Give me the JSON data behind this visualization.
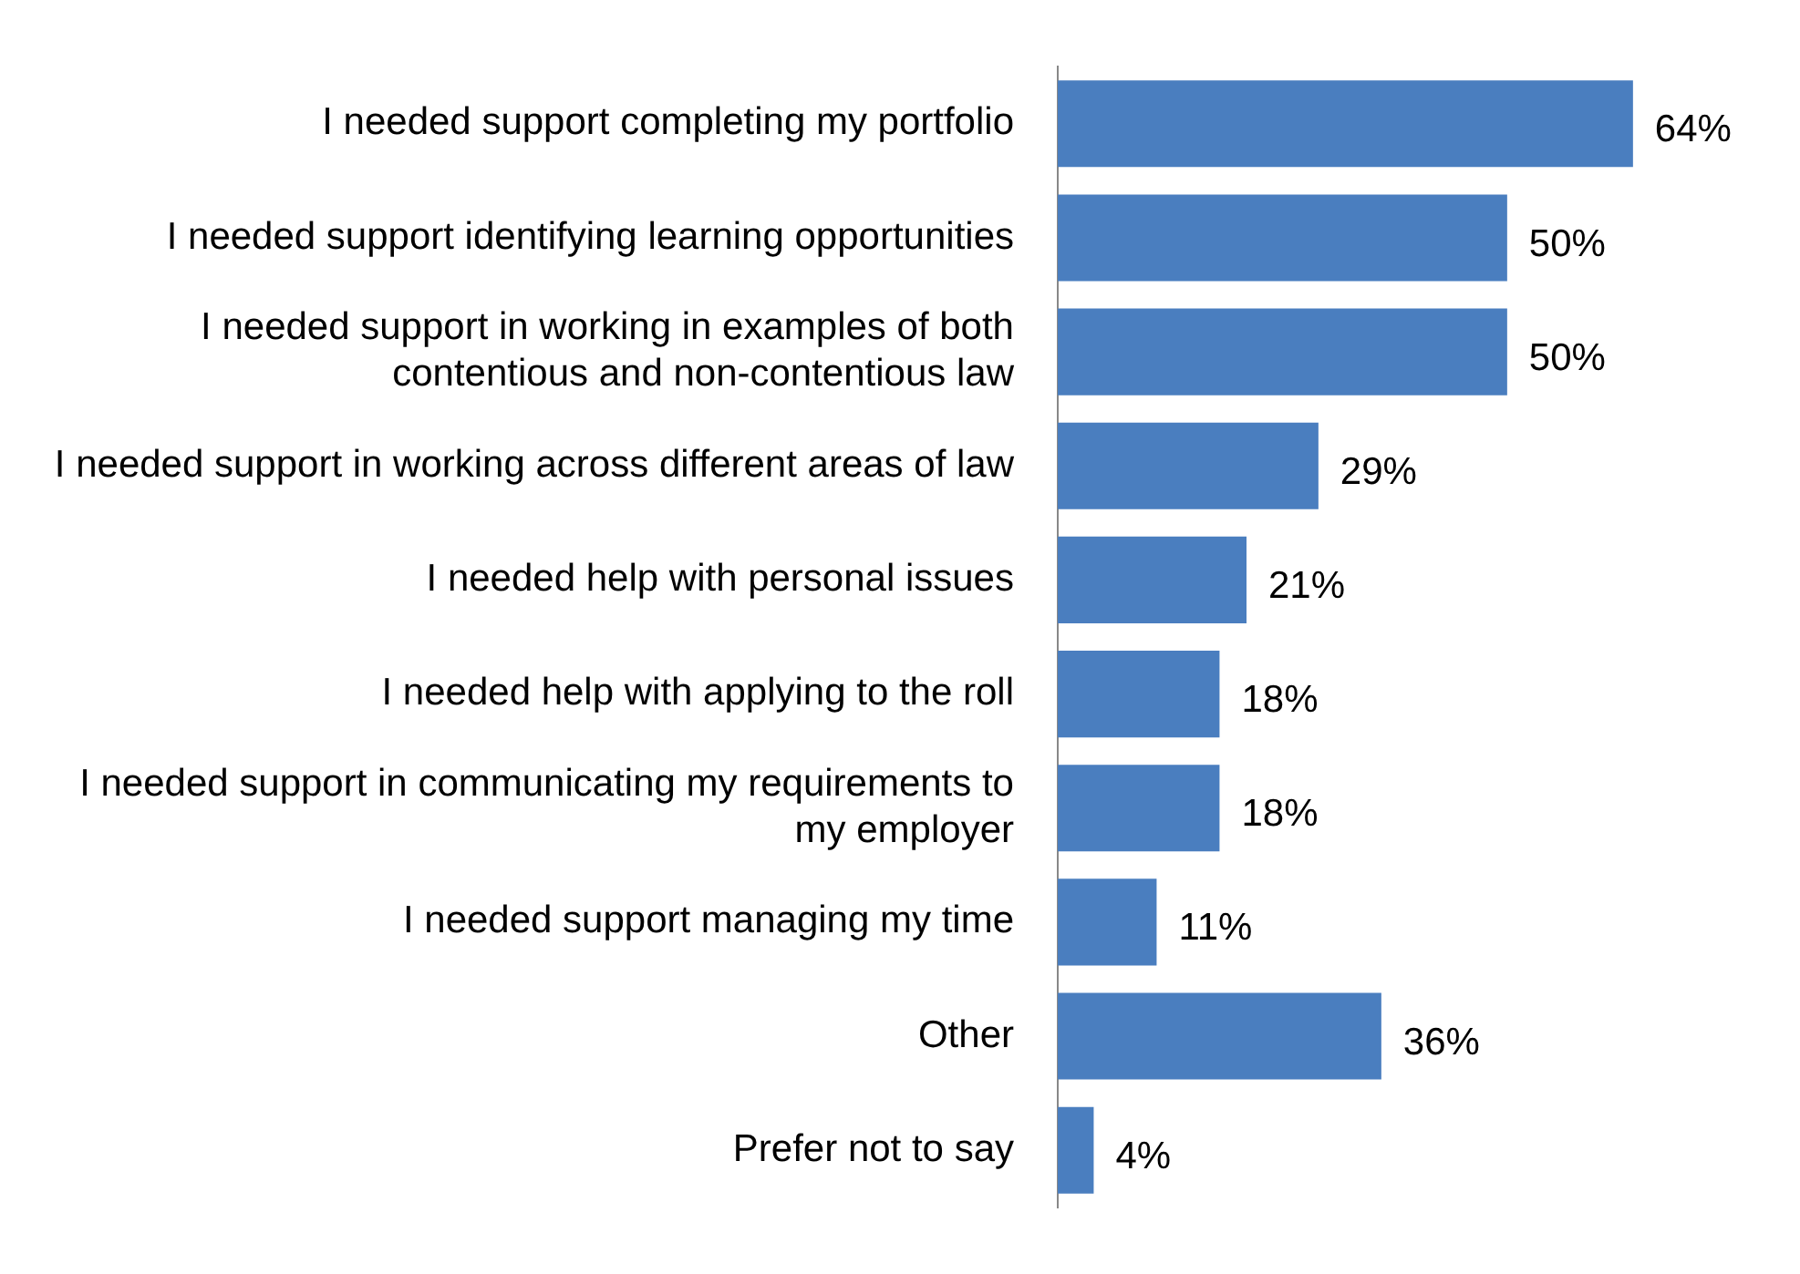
{
  "chart_data": {
    "type": "bar",
    "orientation": "horizontal",
    "categories": [
      "I needed support completing my portfolio",
      "I needed support identifying learning opportunities",
      "I needed support in working in examples of both contentious and non-contentious law",
      "I needed support in working across different areas of law",
      "I needed help with personal issues",
      "I needed help with applying to the roll",
      "I needed support in communicating my requirements to my employer",
      "I needed support managing my time",
      "Other",
      "Prefer not to say"
    ],
    "values": [
      64,
      50,
      50,
      29,
      21,
      18,
      18,
      11,
      36,
      4
    ],
    "value_labels": [
      "64%",
      "50%",
      "50%",
      "29%",
      "21%",
      "18%",
      "18%",
      "11%",
      "36%",
      "4%"
    ],
    "color": "#4a7ebf",
    "tick_labels": "y"
  }
}
